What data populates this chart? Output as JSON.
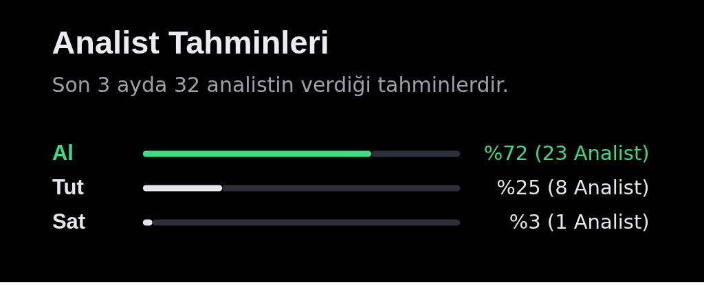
{
  "chart_data": {
    "type": "bar",
    "orientation": "horizontal",
    "stacked": true,
    "title": "Analist Tahminleri",
    "subtitle": "Son 3 ayda 32 analistin verdiği tahminlerdir.",
    "categories": [
      "Al",
      "Tut",
      "Sat"
    ],
    "series": [
      {
        "colors": [
          "#3ddc84",
          "#e6e6ea",
          "#e6e6ea"
        ],
        "values": [
          72,
          25,
          3
        ],
        "value_labels": [
          "%72 (23 Analist)",
          "%25 (8 Analist)",
          "%3 (1 Analist)"
        ]
      },
      {
        "color": "#2c2e3a",
        "values": [
          28,
          75,
          97
        ]
      }
    ],
    "xlim": [
      0,
      100
    ],
    "tick_labels": "y"
  }
}
